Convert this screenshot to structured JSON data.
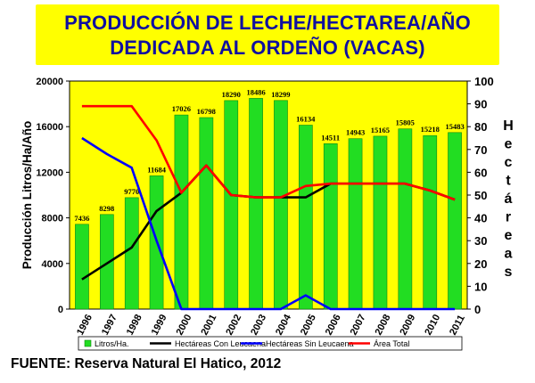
{
  "header": {
    "title_line1": "PRODUCCIÓN DE LECHE/HECTAREA/AÑO",
    "title_line2": "DEDICADA AL ORDEÑO (VACAS)"
  },
  "footer": {
    "source": "FUENTE: Reserva Natural El Hatico, 2012"
  },
  "colors": {
    "title_bg": "#ffff00",
    "title_text": "#1010a0",
    "plot_bg": "#ffff00",
    "bar_fill": "#22dd22",
    "con_leucaena": "#000000",
    "sin_leucaena": "#0000ff",
    "area_total": "#ff0000"
  },
  "chart_data": {
    "type": "bar",
    "title": "",
    "categories": [
      "1996",
      "1997",
      "1998",
      "1999",
      "2000",
      "2001",
      "2002",
      "2003",
      "2004",
      "2005",
      "2006",
      "2007",
      "2008",
      "2009",
      "2010",
      "2011"
    ],
    "ylabel": "Producción Litros/Ha/Año",
    "y2label": "Hectáreas",
    "y2label_chars": [
      "H",
      "e",
      "c",
      "t",
      "á",
      "r",
      "e",
      "a",
      "s"
    ],
    "ylim": [
      0,
      20000
    ],
    "yticks": [
      "0",
      "4000",
      "8000",
      "12000",
      "16000",
      "20000"
    ],
    "y2lim": [
      0,
      100
    ],
    "y2ticks": [
      "0",
      "10",
      "20",
      "30",
      "40",
      "50",
      "60",
      "70",
      "80",
      "90",
      "100"
    ],
    "grid": false,
    "legend_position": "bottom",
    "bars": {
      "name": "Litros/Ha.",
      "values": [
        7436,
        8298,
        9770,
        11684,
        17026,
        16798,
        18290,
        18486,
        18299,
        16134,
        14511,
        14943,
        15165,
        15805,
        15218,
        15483
      ],
      "labels": [
        "7436",
        "8298",
        "9770",
        "11684",
        "17026",
        "16798",
        "18290",
        "18486",
        "18299",
        "16134",
        "14511",
        "14943",
        "15165",
        "15805",
        "15218",
        "15483"
      ]
    },
    "lines": [
      {
        "name": "Hectáreas Con Leucaena",
        "axis": "right",
        "values": [
          13,
          20,
          27,
          43,
          51,
          63,
          50,
          49,
          49,
          49,
          55,
          55,
          55,
          55,
          52,
          48
        ]
      },
      {
        "name": "Hectáreas Sin Leucaena",
        "axis": "right",
        "values": [
          75,
          68,
          62,
          30,
          0,
          0,
          0,
          0,
          0,
          6,
          0,
          0,
          0,
          0,
          0,
          0
        ]
      },
      {
        "name": "Área Total",
        "axis": "right",
        "values": [
          89,
          89,
          89,
          74,
          51,
          63,
          50,
          49,
          49,
          54,
          55,
          55,
          55,
          55,
          52,
          48
        ]
      }
    ]
  }
}
